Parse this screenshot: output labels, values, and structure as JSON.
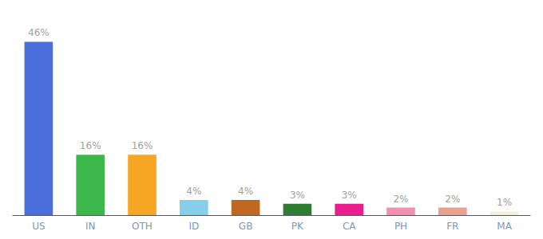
{
  "chart_data": {
    "type": "bar",
    "categories": [
      "US",
      "IN",
      "OTH",
      "ID",
      "GB",
      "PK",
      "CA",
      "PH",
      "FR",
      "MA"
    ],
    "values": [
      46,
      16,
      16,
      4,
      4,
      3,
      3,
      2,
      2,
      1
    ],
    "value_labels": [
      "46%",
      "16%",
      "16%",
      "4%",
      "4%",
      "3%",
      "3%",
      "2%",
      "2%",
      "1%"
    ],
    "colors": [
      "#4a6fdc",
      "#3cb84a",
      "#f5a623",
      "#87ceeb",
      "#c06820",
      "#2e7d32",
      "#e91e8c",
      "#f48fb1",
      "#e8a090",
      "#f5f0d8"
    ],
    "ylim": [
      0,
      52
    ],
    "data_labels": true,
    "tick_labels": "x",
    "grid": false
  }
}
